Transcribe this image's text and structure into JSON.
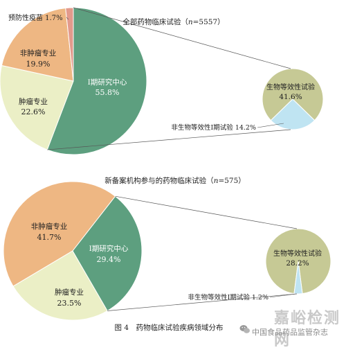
{
  "figure_caption": "图 4　药物临床试验疾病领域分布",
  "watermark": {
    "main": "嘉峪检测网",
    "sub": "中国食品药品监管杂志"
  },
  "colors": {
    "prevention": "#e39a8c",
    "non_tumor": "#eeb783",
    "tumor": "#ebefc6",
    "phase1": "#5d9f7f",
    "bioequivalence": "#c6c995",
    "non_bio_phase1": "#bfe4f2",
    "stroke": "#ffffff",
    "connector": "#555555",
    "text": "#222222",
    "phase1_text": "#ffffff"
  },
  "chart_data": [
    {
      "type": "pie",
      "title": "全部药物临床试验（n=5557）",
      "title_parts": {
        "prefix": "全部药物临床试验（",
        "n": "n",
        "suffix": "=5557）"
      },
      "slices": [
        {
          "key": "phase1",
          "name": "Ⅰ期研究中心",
          "value": 55.8,
          "label": "55.8%",
          "color": "#5d9f7f"
        },
        {
          "key": "tumor",
          "name": "肿瘤专业",
          "value": 22.6,
          "label": "22.6%",
          "color": "#ebefc6"
        },
        {
          "key": "non_tumor",
          "name": "非肿瘤专业",
          "value": 19.9,
          "label": "19.9%",
          "color": "#eeb783"
        },
        {
          "key": "prevention",
          "name": "预防性疫苗",
          "value": 1.7,
          "label": "1.7%",
          "color": "#e39a8c"
        }
      ],
      "breakdown": {
        "of": "Ⅰ期研究中心",
        "slices": [
          {
            "key": "bioequivalence",
            "name": "生物等效性试验",
            "value": 41.6,
            "label": "41.6%",
            "color": "#c6c995"
          },
          {
            "key": "non_bio_phase1",
            "name": "非生物等效性Ⅰ期试验",
            "value": 14.2,
            "label": "14.2%",
            "color": "#bfe4f2"
          }
        ]
      }
    },
    {
      "type": "pie",
      "title": "新备案机构参与的药物临床试验（n=575）",
      "title_parts": {
        "prefix": "新备案机构参与的药物临床试验（",
        "n": "n",
        "suffix": "=575）"
      },
      "slices": [
        {
          "key": "non_tumor",
          "name": "非肿瘤专业",
          "value": 41.7,
          "label": "41.7%",
          "color": "#eeb783"
        },
        {
          "key": "tumor",
          "name": "肿瘤专业",
          "value": 23.5,
          "label": "23.5%",
          "color": "#ebefc6"
        },
        {
          "key": "phase1",
          "name": "Ⅰ期研究中心",
          "value": 29.4,
          "label": "29.4%",
          "color": "#5d9f7f"
        }
      ],
      "breakdown": {
        "of": "Ⅰ期研究中心",
        "slices": [
          {
            "key": "bioequivalence",
            "name": "生物等效性试验",
            "value": 28.2,
            "label": "28.2%",
            "color": "#c6c995"
          },
          {
            "key": "non_bio_phase1",
            "name": "非生物等效性Ⅰ期试验",
            "value": 1.2,
            "label": "1.2%",
            "color": "#bfe4f2"
          }
        ]
      }
    }
  ]
}
